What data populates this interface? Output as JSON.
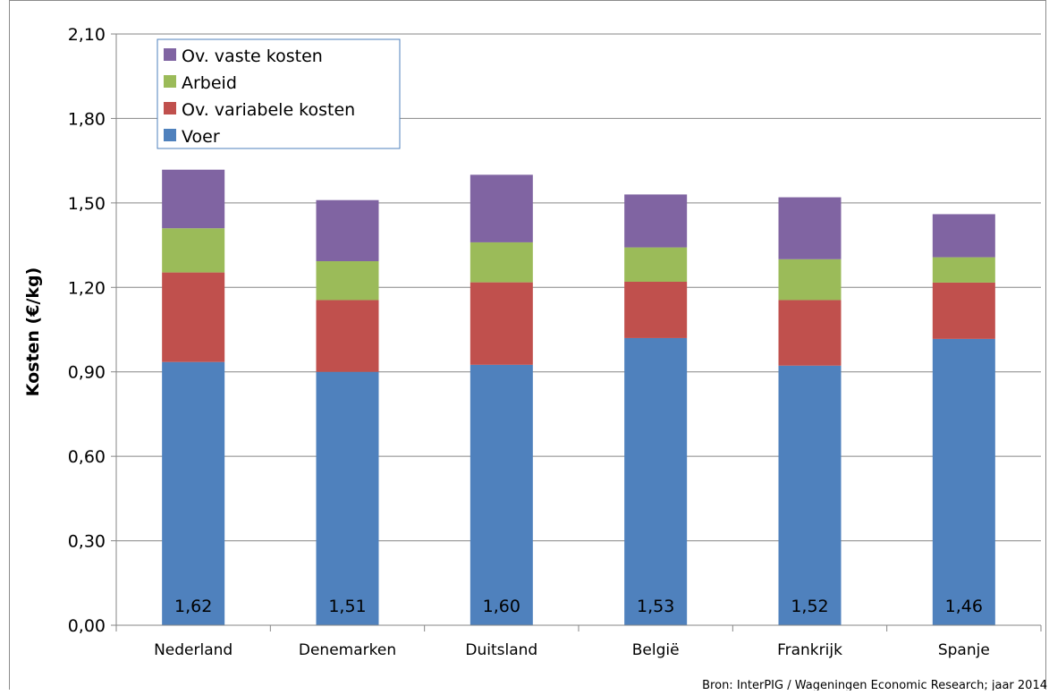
{
  "chart_data": {
    "type": "bar",
    "stacked": true,
    "categories": [
      "Nederland",
      "Denemarken",
      "Duitsland",
      "België",
      "Frankrijk",
      "Spanje"
    ],
    "series": [
      {
        "name": "Voer",
        "color": "#4f81bd",
        "values": [
          0.935,
          0.9,
          0.925,
          1.02,
          0.922,
          1.017
        ]
      },
      {
        "name": "Ov. variabele kosten",
        "color": "#c0504d",
        "values": [
          0.318,
          0.255,
          0.293,
          0.2,
          0.233,
          0.2
        ]
      },
      {
        "name": "Arbeid",
        "color": "#9bbb59",
        "values": [
          0.157,
          0.138,
          0.142,
          0.122,
          0.145,
          0.09
        ]
      },
      {
        "name": "Ov. vaste kosten",
        "color": "#8064a2",
        "values": [
          0.208,
          0.217,
          0.24,
          0.188,
          0.22,
          0.153
        ]
      }
    ],
    "totals": [
      "1,62",
      "1,51",
      "1,60",
      "1,53",
      "1,52",
      "1,46"
    ],
    "ylabel": "Kosten (€/kg)",
    "xlabel": "",
    "ylim": [
      0,
      2.1
    ],
    "yticks": [
      0,
      0.3,
      0.6,
      0.9,
      1.2,
      1.5,
      1.8,
      2.1
    ],
    "ytick_labels": [
      "0,00",
      "0,30",
      "0,60",
      "0,90",
      "1,20",
      "1,50",
      "1,80",
      "2,10"
    ],
    "grid": true,
    "legend_position": "top-left",
    "legend_order": [
      "Ov. vaste kosten",
      "Arbeid",
      "Ov. variabele kosten",
      "Voer"
    ],
    "source_note": "Bron: InterPIG / Wageningen Economic Research; jaar 2014"
  }
}
